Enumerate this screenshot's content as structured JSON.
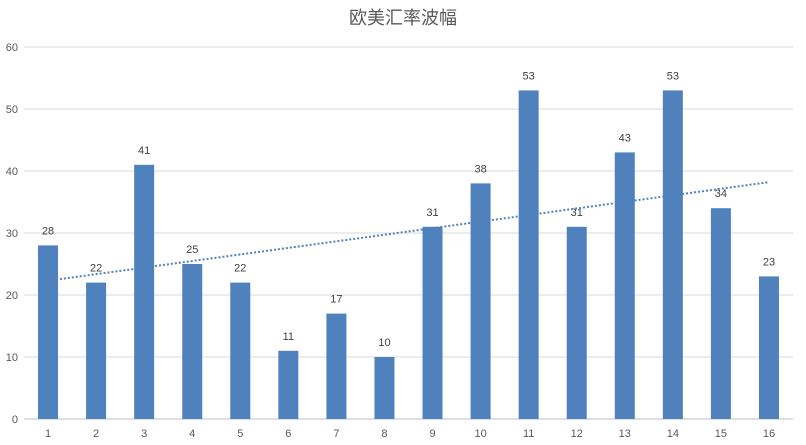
{
  "chart_data": {
    "type": "bar",
    "title": "欧美汇率波幅",
    "xlabel": "",
    "ylabel": "",
    "categories": [
      "1",
      "2",
      "3",
      "4",
      "5",
      "6",
      "7",
      "8",
      "9",
      "10",
      "11",
      "12",
      "13",
      "14",
      "15",
      "16"
    ],
    "series": [
      {
        "values": [
          28,
          22,
          41,
          25,
          22,
          11,
          17,
          10,
          31,
          38,
          53,
          31,
          43,
          53,
          34,
          23
        ]
      }
    ],
    "ylim": [
      0,
      60
    ],
    "yticks": [
      0,
      10,
      20,
      30,
      40,
      50,
      60
    ],
    "grid": true,
    "legend": "none",
    "data_labels": true,
    "trendline": {
      "type": "linear",
      "style": "dotted",
      "start": 22.3,
      "end": 38.2
    },
    "colors": {
      "bar": "#4f81bd",
      "trendline": "#4f81bd",
      "grid": "#d9d9d9",
      "text": "#595959"
    }
  }
}
